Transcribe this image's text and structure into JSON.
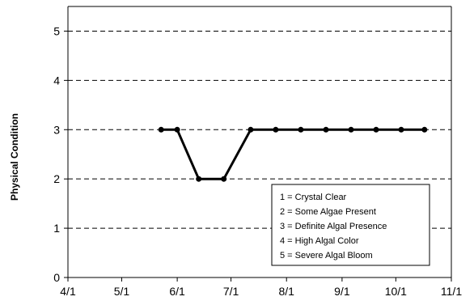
{
  "chart_data": {
    "type": "line",
    "title": "",
    "xlabel": "",
    "ylabel": "Physical Condition",
    "x_axis": {
      "type": "date",
      "year": 2001,
      "range": [
        "2001-04-01",
        "2001-11-01"
      ],
      "tick_values": [
        "2001-04-01",
        "2001-05-01",
        "2001-06-01",
        "2001-07-01",
        "2001-08-01",
        "2001-09-01",
        "2001-10-01",
        "2001-11-01"
      ],
      "tick_labels": [
        "4/1",
        "5/1",
        "6/1",
        "7/1",
        "8/1",
        "9/1",
        "10/1",
        "11/1"
      ]
    },
    "y_axis": {
      "range": [
        0,
        5.5
      ],
      "ticks": [
        0,
        1,
        2,
        3,
        4,
        5
      ],
      "tick_labels": [
        "0",
        "1",
        "2",
        "3",
        "4",
        "5"
      ]
    },
    "grid": {
      "y": "dashed",
      "x": "none"
    },
    "series": [
      {
        "color": "#000000",
        "marker": "circle",
        "points": [
          {
            "x": "2001-05-23",
            "y": 3
          },
          {
            "x": "2001-06-01",
            "y": 3
          },
          {
            "x": "2001-06-13",
            "y": 2
          },
          {
            "x": "2001-06-27",
            "y": 2
          },
          {
            "x": "2001-07-12",
            "y": 3
          },
          {
            "x": "2001-07-26",
            "y": 3
          },
          {
            "x": "2001-08-09",
            "y": 3
          },
          {
            "x": "2001-08-23",
            "y": 3
          },
          {
            "x": "2001-09-06",
            "y": 3
          },
          {
            "x": "2001-09-20",
            "y": 3
          },
          {
            "x": "2001-10-04",
            "y": 3
          },
          {
            "x": "2001-10-17",
            "y": 3
          }
        ]
      }
    ],
    "legend": {
      "placement": "bottom-right",
      "entries": [
        "1 = Crystal Clear",
        "2 = Some Algae Present",
        "3 = Definite Algal Presence",
        "4 = High Algal Color",
        "5 = Severe Algal Bloom"
      ]
    }
  }
}
